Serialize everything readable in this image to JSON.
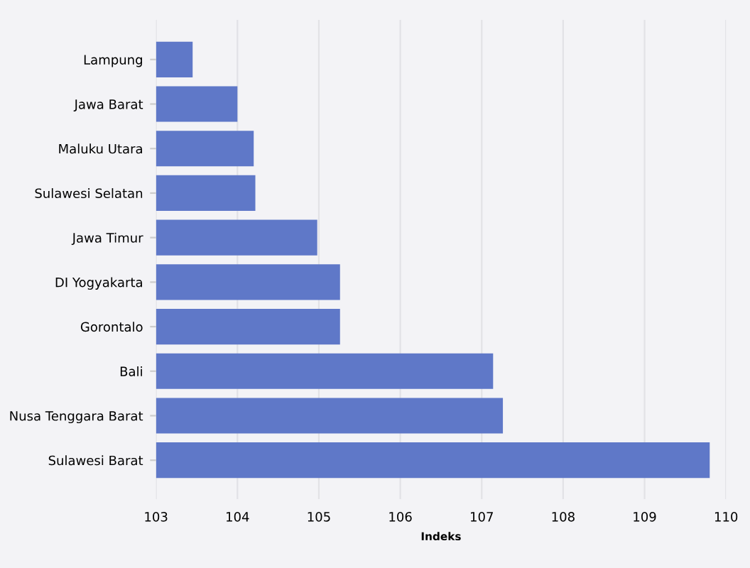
{
  "chart_data": {
    "type": "bar",
    "orientation": "horizontal",
    "xlabel": "Indeks",
    "categories": [
      "Lampung",
      "Jawa Barat",
      "Maluku Utara",
      "Sulawesi Selatan",
      "Jawa Timur",
      "DI Yogyakarta",
      "Gorontalo",
      "Bali",
      "Nusa Tenggara Barat",
      "Sulawesi Barat"
    ],
    "values": [
      103.45,
      104.0,
      104.2,
      104.22,
      104.98,
      105.26,
      105.26,
      107.14,
      107.26,
      109.8
    ],
    "color": "#5f78c8",
    "xlim": [
      103,
      110
    ],
    "xticks": [
      103,
      104,
      105,
      106,
      107,
      108,
      109,
      110
    ],
    "grid": "x",
    "legend": false
  }
}
